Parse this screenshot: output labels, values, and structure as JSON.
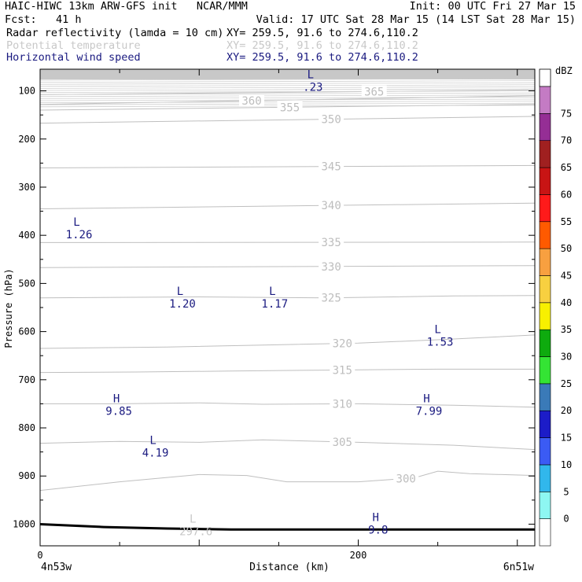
{
  "header": {
    "title_left": "HAIC-HIWC 13km ARW-GFS init   NCAR/MMM",
    "init": "Init: 00 UTC Fri 27 Mar 15",
    "fcst": "Fcst:   41 h",
    "valid": "Valid: 17 UTC Sat 28 Mar 15 (14 LST Sat 28 Mar 15)",
    "fields": [
      {
        "name": "Radar reflectivity (lamda = 10 cm)",
        "xy": "XY= 259.5, 91.6 to 274.6,110.2",
        "color": "#000000"
      },
      {
        "name": "Potential temperature",
        "xy": "XY= 259.5, 91.6 to 274.6,110.2",
        "color": "#c8c8c8"
      },
      {
        "name": "Horizontal wind speed",
        "xy": "XY= 259.5, 91.6 to 274.6,110.2",
        "color": "#1a1a80"
      }
    ]
  },
  "colorbar": {
    "unit": "dBZ",
    "levels": [
      "0",
      "5",
      "10",
      "15",
      "20",
      "25",
      "30",
      "35",
      "40",
      "45",
      "50",
      "55",
      "60",
      "65",
      "70",
      "75"
    ],
    "colors": [
      "#ffffff",
      "#8ef7f2",
      "#31b7ec",
      "#3b5bf4",
      "#1c1cc8",
      "#3a7ab8",
      "#34e434",
      "#0eab0e",
      "#f8f000",
      "#f8d040",
      "#f8a040",
      "#ff5a00",
      "#ff1a1a",
      "#c81414",
      "#a02020",
      "#952e95",
      "#c47bc4"
    ]
  },
  "chart_data": {
    "type": "contour",
    "title": "",
    "xlabel": "Distance (km)",
    "ylabel": "Pressure (hPa)",
    "xlim": [
      0,
      311
    ],
    "ylim": [
      1045,
      55
    ],
    "x_ticks": [
      "0",
      "200"
    ],
    "y_ticks": [
      "100",
      "200",
      "300",
      "400",
      "500",
      "600",
      "700",
      "800",
      "900",
      "1000"
    ],
    "x_endpoint_labels": [
      "4n53w",
      "6n51w"
    ],
    "theta_contours": [
      {
        "label": "300",
        "points": [
          [
            0,
            930
          ],
          [
            50,
            912
          ],
          [
            100,
            897
          ],
          [
            130,
            899
          ],
          [
            155,
            912
          ],
          [
            200,
            912
          ],
          [
            235,
            904
          ],
          [
            250,
            890
          ],
          [
            270,
            895
          ],
          [
            311,
            899
          ]
        ]
      },
      {
        "label": "305",
        "points": [
          [
            0,
            832
          ],
          [
            50,
            828
          ],
          [
            100,
            830
          ],
          [
            140,
            825
          ],
          [
            200,
            830
          ],
          [
            260,
            836
          ],
          [
            311,
            845
          ]
        ]
      },
      {
        "label": "310",
        "points": [
          [
            0,
            750
          ],
          [
            50,
            750
          ],
          [
            100,
            748
          ],
          [
            140,
            751
          ],
          [
            200,
            750
          ],
          [
            260,
            753
          ],
          [
            311,
            757
          ]
        ]
      },
      {
        "label": "315",
        "points": [
          [
            0,
            685
          ],
          [
            60,
            684
          ],
          [
            120,
            682
          ],
          [
            180,
            680
          ],
          [
            250,
            678
          ],
          [
            311,
            678
          ]
        ]
      },
      {
        "label": "320",
        "points": [
          [
            0,
            635
          ],
          [
            80,
            632
          ],
          [
            140,
            628
          ],
          [
            200,
            624
          ],
          [
            250,
            617
          ],
          [
            311,
            607
          ]
        ]
      },
      {
        "label": "325",
        "points": [
          [
            0,
            530
          ],
          [
            100,
            528
          ],
          [
            180,
            530
          ],
          [
            260,
            526
          ],
          [
            311,
            525
          ]
        ]
      },
      {
        "label": "330",
        "points": [
          [
            0,
            467
          ],
          [
            311,
            463
          ]
        ]
      },
      {
        "label": "335",
        "points": [
          [
            0,
            415
          ],
          [
            311,
            414
          ]
        ]
      },
      {
        "label": "340",
        "points": [
          [
            0,
            345
          ],
          [
            311,
            333
          ]
        ]
      },
      {
        "label": "345",
        "points": [
          [
            0,
            260
          ],
          [
            311,
            255
          ]
        ]
      },
      {
        "label": "350",
        "points": [
          [
            0,
            167
          ],
          [
            311,
            153
          ]
        ]
      },
      {
        "label": "355",
        "points": [
          [
            0,
            140
          ],
          [
            311,
            128
          ]
        ]
      },
      {
        "label": "360",
        "points": [
          [
            0,
            128
          ],
          [
            311,
            110
          ]
        ]
      },
      {
        "label": "365",
        "points": [
          [
            0,
            108
          ],
          [
            311,
            98
          ]
        ]
      }
    ],
    "wind_extrema": [
      {
        "type": "L",
        "value": ".23",
        "x": 170,
        "p": 80
      },
      {
        "type": "L",
        "value": "1.26",
        "x": 23,
        "p": 387
      },
      {
        "type": "L",
        "value": "1.20",
        "x": 88,
        "p": 530
      },
      {
        "type": "L",
        "value": "1.17",
        "x": 146,
        "p": 530
      },
      {
        "type": "L",
        "value": "1.53",
        "x": 250,
        "p": 610
      },
      {
        "type": "H",
        "value": "9.85",
        "x": 48,
        "p": 753
      },
      {
        "type": "H",
        "value": "7.99",
        "x": 243,
        "p": 753
      },
      {
        "type": "L",
        "value": "4.19",
        "x": 71,
        "p": 840
      },
      {
        "type": "H",
        "value": "9.8",
        "x": 211,
        "p": 1000
      }
    ],
    "theta_extrema": [
      {
        "type": "L",
        "value": "297.6",
        "x": 96,
        "p": 1000
      }
    ],
    "terrain_p": [
      [
        0,
        1000
      ],
      [
        40,
        1006
      ],
      [
        80,
        1009
      ],
      [
        120,
        1011
      ],
      [
        200,
        1011
      ],
      [
        311,
        1011
      ]
    ]
  }
}
